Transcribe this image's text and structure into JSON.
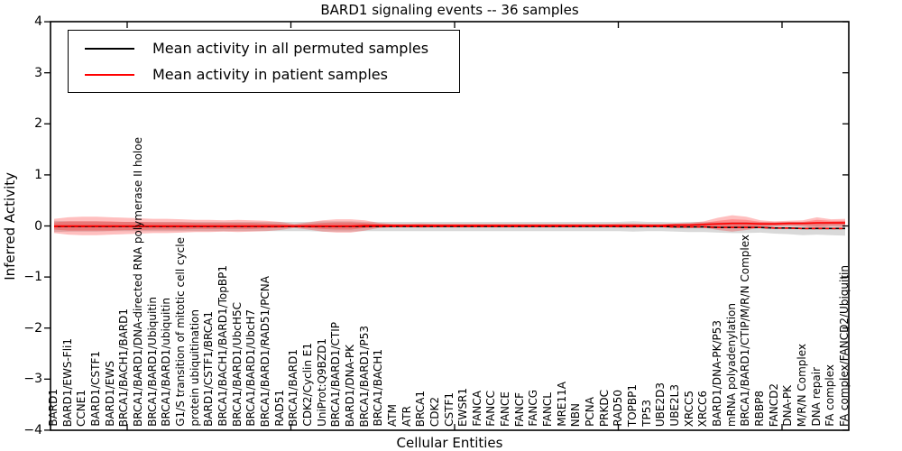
{
  "chart_data": {
    "type": "line",
    "title": "BARD1 signaling events -- 36 samples",
    "xlabel": "Cellular Entities",
    "ylabel": "Inferred Activity",
    "ylim": [
      -4,
      4
    ],
    "ytick_labels": [
      "4",
      "3",
      "2",
      "1",
      "0",
      "−1",
      "−2",
      "−3",
      "−4"
    ],
    "grid": false,
    "legend_position": "upper left",
    "categories": [
      "BARD1",
      "BARD1/EWS-Fli1",
      "CCNE1",
      "BARD1/CSTF1",
      "BARD1/EWS",
      "BRCA1/BACH1/BARD1",
      "BRCA1/BARD1/DNA-directed RNA polymerase II holoe",
      "BRCA1/BARD1/Ubiquitin",
      "BRCA1/BARD1/ubiquitin",
      "G1/S transition of mitotic cell cycle",
      "protein ubiquitination",
      "BARD1/CSTF1/BRCA1",
      "BRCA1/BACH1/BARD1/TopBP1",
      "BRCA1/BARD1/UbcH5C",
      "BRCA1/BARD1/UbcH7",
      "BRCA1/BARD1/RAD51/PCNA",
      "RAD51",
      "BRCA1/BARD1",
      "CDK2/Cyclin E1",
      "UniProt:Q9BZD1",
      "BRCA1/BARD1/CTIP",
      "BARD1/DNA-PK",
      "BRCA1/BARD1/P53",
      "BRCA1/BACH1",
      "ATM",
      "ATR",
      "BRCA1",
      "CDK2",
      "CSTF1",
      "EWSR1",
      "FANCA",
      "FANCC",
      "FANCE",
      "FANCF",
      "FANCG",
      "FANCL",
      "MRE11A",
      "NBN",
      "PCNA",
      "PRKDC",
      "RAD50",
      "TOPBP1",
      "TP53",
      "UBE2D3",
      "UBE2L3",
      "XRCC5",
      "XRCC6",
      "BARD1/DNA-PK/P53",
      "mRNA polyadenylation",
      "BRCA1/BARD1/CTIP/M/R/N Complex",
      "RBBP8",
      "FANCD2",
      "DNA-PK",
      "M/R/N Complex",
      "DNA repair",
      "FA complex",
      "FA complex/FANCD2/Ubiquitin"
    ],
    "series": [
      {
        "name": "Mean activity in all permuted samples",
        "color": "#000000",
        "line_style": "solid",
        "band_color": "#000000",
        "band_opacity": 0.15,
        "values": [
          -0.01,
          -0.01,
          -0.01,
          -0.01,
          -0.01,
          -0.01,
          -0.01,
          -0.01,
          -0.01,
          -0.01,
          -0.01,
          -0.01,
          -0.01,
          -0.01,
          -0.01,
          -0.01,
          -0.01,
          -0.01,
          -0.01,
          -0.01,
          -0.01,
          -0.01,
          -0.01,
          -0.01,
          -0.01,
          -0.01,
          -0.01,
          -0.01,
          -0.01,
          -0.01,
          -0.01,
          -0.01,
          -0.01,
          -0.01,
          -0.01,
          -0.01,
          -0.01,
          -0.01,
          -0.01,
          -0.01,
          -0.01,
          -0.01,
          -0.01,
          -0.01,
          -0.02,
          -0.02,
          -0.02,
          -0.03,
          -0.03,
          -0.03,
          -0.03,
          -0.04,
          -0.04,
          -0.05,
          -0.05,
          -0.05,
          -0.05
        ],
        "band_halfwidth": [
          0.11,
          0.1,
          0.1,
          0.1,
          0.09,
          0.09,
          0.09,
          0.09,
          0.09,
          0.09,
          0.09,
          0.09,
          0.09,
          0.09,
          0.09,
          0.09,
          0.09,
          0.09,
          0.09,
          0.1,
          0.1,
          0.1,
          0.09,
          0.09,
          0.09,
          0.09,
          0.09,
          0.09,
          0.09,
          0.09,
          0.09,
          0.09,
          0.09,
          0.09,
          0.09,
          0.09,
          0.09,
          0.09,
          0.09,
          0.09,
          0.09,
          0.1,
          0.09,
          0.09,
          0.09,
          0.1,
          0.1,
          0.1,
          0.11,
          0.11,
          0.1,
          0.11,
          0.12,
          0.13,
          0.12,
          0.13,
          0.14
        ]
      },
      {
        "name": "Mean activity in patient samples",
        "color": "#ff0000",
        "line_style": "solid",
        "band_color": "#ff0000",
        "band_opacity": 0.25,
        "values": [
          0,
          0,
          0,
          0,
          0,
          0,
          0,
          0,
          0,
          0,
          0,
          0,
          0,
          0,
          0,
          0,
          0,
          0,
          0,
          0,
          0,
          0,
          0.01,
          0.01,
          0.01,
          0.01,
          0.01,
          0.01,
          0.01,
          0.01,
          0.01,
          0.01,
          0.01,
          0.01,
          0.01,
          0.01,
          0.01,
          0.01,
          0.01,
          0.01,
          0.01,
          0.01,
          0.01,
          0.01,
          0.02,
          0.02,
          0.03,
          0.04,
          0.05,
          0.05,
          0.04,
          0.04,
          0.05,
          0.05,
          0.06,
          0.06,
          0.06
        ],
        "band_halfwidth_outer": [
          0.14,
          0.17,
          0.18,
          0.18,
          0.17,
          0.16,
          0.15,
          0.14,
          0.14,
          0.13,
          0.12,
          0.12,
          0.11,
          0.12,
          0.11,
          0.1,
          0.08,
          0.04,
          0.07,
          0.11,
          0.13,
          0.13,
          0.1,
          0.05,
          0.03,
          0.03,
          0.04,
          0.03,
          0.03,
          0.03,
          0.03,
          0.03,
          0.03,
          0.03,
          0.03,
          0.03,
          0.03,
          0.03,
          0.03,
          0.03,
          0.04,
          0.04,
          0.03,
          0.03,
          0.03,
          0.04,
          0.06,
          0.12,
          0.16,
          0.13,
          0.07,
          0.05,
          0.05,
          0.06,
          0.11,
          0.07,
          0.08
        ],
        "band_halfwidth_inner": [
          0.07,
          0.09,
          0.09,
          0.09,
          0.09,
          0.08,
          0.08,
          0.07,
          0.07,
          0.07,
          0.06,
          0.06,
          0.06,
          0.06,
          0.06,
          0.05,
          0.04,
          0.02,
          0.04,
          0.06,
          0.07,
          0.07,
          0.05,
          0.03,
          0.02,
          0.02,
          0.02,
          0.02,
          0.02,
          0.02,
          0.02,
          0.02,
          0.02,
          0.02,
          0.02,
          0.02,
          0.02,
          0.02,
          0.02,
          0.02,
          0.02,
          0.02,
          0.02,
          0.02,
          0.02,
          0.02,
          0.03,
          0.06,
          0.08,
          0.07,
          0.04,
          0.03,
          0.03,
          0.03,
          0.06,
          0.04,
          0.04
        ]
      }
    ]
  }
}
